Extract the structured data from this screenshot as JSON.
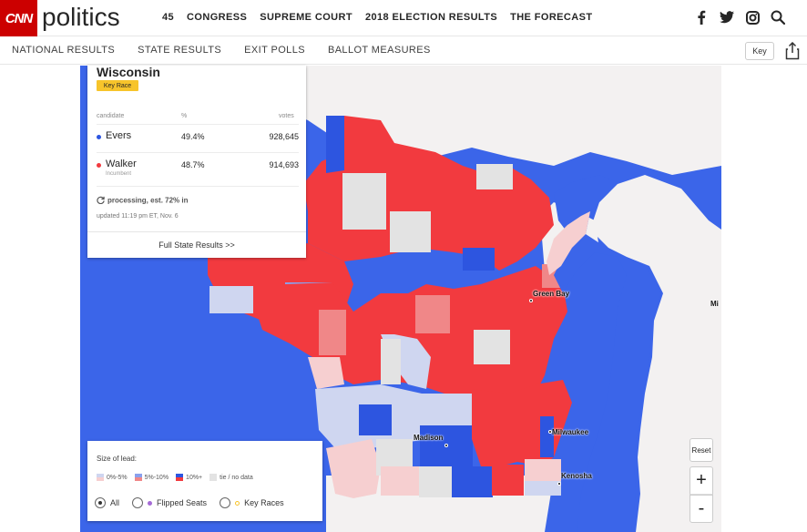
{
  "header": {
    "logo_text": "CNN",
    "brand_text": "politics",
    "nav": [
      "45",
      "CONGRESS",
      "SUPREME COURT",
      "2018 ELECTION RESULTS",
      "THE FORECAST"
    ],
    "social_icons": [
      "facebook-icon",
      "twitter-icon",
      "instagram-icon",
      "search-icon"
    ]
  },
  "subnav": {
    "items": [
      "NATIONAL RESULTS",
      "STATE RESULTS",
      "EXIT POLLS",
      "BALLOT MEASURES"
    ],
    "key_label": "Key"
  },
  "panel": {
    "state": "Wisconsin",
    "badge": "Key Race",
    "col_candidate": "candidate",
    "col_pct": "%",
    "col_votes": "votes",
    "candidates": [
      {
        "name": "Evers",
        "sub": "",
        "pct": "49.4%",
        "votes": "928,645",
        "color": "#2d55e0"
      },
      {
        "name": "Walker",
        "sub": "Incumbent",
        "pct": "48.7%",
        "votes": "914,693",
        "color": "#f23a3f"
      }
    ],
    "processing": "processing, est. 72% in",
    "updated": "updated 11:19 pm ET, Nov. 6",
    "footer_link": "Full State Results >>"
  },
  "legend": {
    "title": "Size of lead:",
    "ranges": [
      {
        "label": "0%-5%"
      },
      {
        "label": "5%-10%"
      },
      {
        "label": "10%+"
      },
      {
        "label": "tie / no data"
      }
    ],
    "filters": [
      {
        "label": "All",
        "selected": true
      },
      {
        "label": "Flipped Seats",
        "selected": false
      },
      {
        "label": "Key Races",
        "selected": false
      }
    ]
  },
  "map": {
    "cities": [
      "Green Bay",
      "Madison",
      "Milwaukee",
      "Kenosha",
      "Mi"
    ],
    "reset_label": "Reset",
    "zoom_in": "+",
    "zoom_out": "-",
    "colors": {
      "water": "#3b65e9",
      "land": "#f3f1f1",
      "dem_strong": "#2d55e0",
      "dem_mid": "#8aa0ec",
      "dem_light": "#cfd6f0",
      "rep_strong": "#f23a3f",
      "rep_mid": "#f08788",
      "rep_light": "#f6cfd0",
      "tie": "#e3e3e3"
    }
  }
}
